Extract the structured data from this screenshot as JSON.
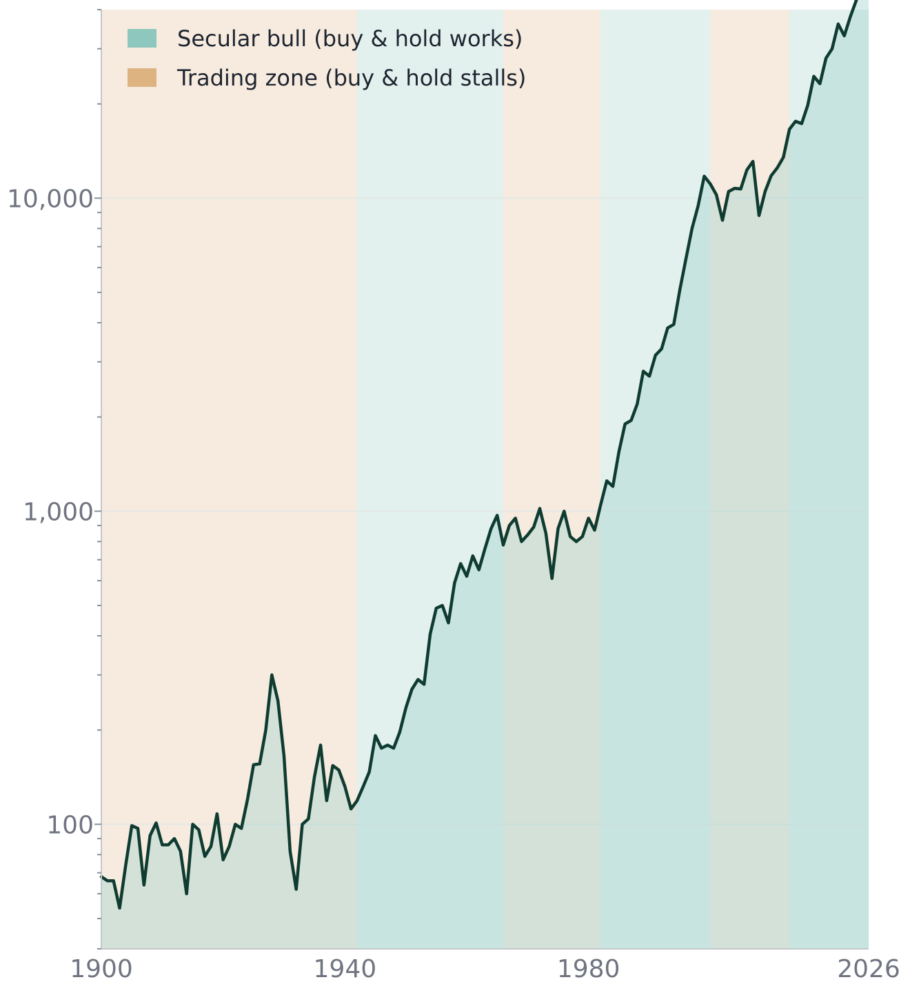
{
  "chart_data": {
    "type": "line",
    "title": "",
    "xlabel": "",
    "ylabel": "",
    "y_scale": "log",
    "xlim": [
      1900,
      2026
    ],
    "ylim": [
      40,
      40000
    ],
    "grid": "horizontal at major ticks",
    "legend_position": "top-left",
    "x_ticks": [
      {
        "value": 1900,
        "label": "1900"
      },
      {
        "value": 1940,
        "label": "1940"
      },
      {
        "value": 1980,
        "label": "1980"
      },
      {
        "value": 2026,
        "label": "2026"
      }
    ],
    "y_ticks": [
      {
        "value": 100,
        "label": "100"
      },
      {
        "value": 1000,
        "label": "1,000"
      },
      {
        "value": 10000,
        "label": "10,000"
      }
    ],
    "legend": [
      {
        "key": "bull",
        "label": "Secular bull  (buy & hold works)",
        "color": "#8ec7bd"
      },
      {
        "key": "trading",
        "label": "Trading zone  (buy & hold stalls)",
        "color": "#ddb381"
      }
    ],
    "regimes": [
      {
        "type": "trading",
        "start": 1900,
        "end": 1942
      },
      {
        "type": "bull",
        "start": 1942,
        "end": 1966
      },
      {
        "type": "trading",
        "start": 1966,
        "end": 1982
      },
      {
        "type": "bull",
        "start": 1982,
        "end": 2000
      },
      {
        "type": "trading",
        "start": 2000,
        "end": 2013
      },
      {
        "type": "bull",
        "start": 2013,
        "end": 2026
      }
    ],
    "series": [
      {
        "line_color": "#0f3b31",
        "fill_color": "#a9d5d0",
        "x": [
          1900,
          1901,
          1902,
          1903,
          1904,
          1905,
          1906,
          1907,
          1908,
          1909,
          1910,
          1911,
          1912,
          1913,
          1914,
          1915,
          1916,
          1917,
          1918,
          1919,
          1920,
          1921,
          1922,
          1923,
          1924,
          1925,
          1926,
          1927,
          1928,
          1929,
          1930,
          1931,
          1932,
          1933,
          1934,
          1935,
          1936,
          1937,
          1938,
          1939,
          1940,
          1941,
          1942,
          1943,
          1944,
          1945,
          1946,
          1947,
          1948,
          1949,
          1950,
          1951,
          1952,
          1953,
          1954,
          1955,
          1956,
          1957,
          1958,
          1959,
          1960,
          1961,
          1962,
          1963,
          1964,
          1965,
          1966,
          1967,
          1968,
          1969,
          1970,
          1971,
          1972,
          1973,
          1974,
          1975,
          1976,
          1977,
          1978,
          1979,
          1980,
          1981,
          1982,
          1983,
          1984,
          1985,
          1986,
          1987,
          1988,
          1989,
          1990,
          1991,
          1992,
          1993,
          1994,
          1995,
          1996,
          1997,
          1998,
          1999,
          2000,
          2001,
          2002,
          2003,
          2004,
          2005,
          2006,
          2007,
          2008,
          2009,
          2010,
          2011,
          2012,
          2013,
          2014,
          2015,
          2016,
          2017,
          2018,
          2019,
          2020,
          2021,
          2022,
          2023,
          2024,
          2025,
          2026
        ],
        "values": [
          68,
          66,
          66,
          54,
          74,
          99,
          97,
          64,
          92,
          101,
          86,
          86,
          90,
          82,
          60,
          100,
          96,
          79,
          85,
          108,
          77,
          85,
          100,
          97,
          120,
          155,
          156,
          200,
          300,
          248,
          165,
          82,
          62,
          100,
          104,
          142,
          179,
          119,
          154,
          149,
          132,
          112,
          119,
          132,
          147,
          192,
          175,
          179,
          175,
          197,
          235,
          270,
          290,
          280,
          405,
          490,
          500,
          440,
          590,
          680,
          620,
          720,
          650,
          760,
          880,
          970,
          780,
          900,
          950,
          800,
          840,
          890,
          1020,
          850,
          610,
          880,
          1000,
          830,
          800,
          830,
          950,
          870,
          1050,
          1250,
          1200,
          1550,
          1900,
          1950,
          2200,
          2800,
          2700,
          3150,
          3300,
          3850,
          3950,
          5100,
          6400,
          8000,
          9450,
          11750,
          11100,
          10250,
          8500,
          10500,
          10750,
          10700,
          12300,
          13100,
          8800,
          10500,
          11800,
          12500,
          13500,
          16600,
          17600,
          17300,
          19800,
          24500,
          23200,
          28000,
          30000,
          36000,
          33000,
          38000,
          43000,
          48000,
          51500
        ]
      }
    ]
  }
}
